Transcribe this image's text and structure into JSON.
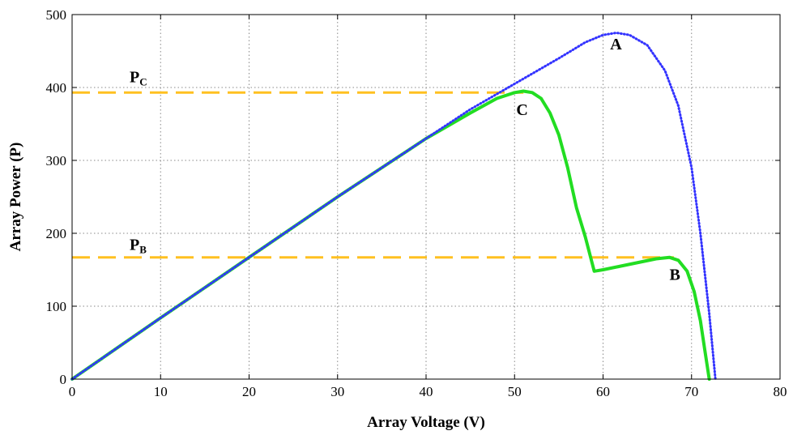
{
  "chart_data": {
    "type": "line",
    "xlabel": "Array Voltage (V)",
    "ylabel": "Array Power (P)",
    "xlim": [
      0,
      80
    ],
    "ylim": [
      0,
      500
    ],
    "xticks": [
      "0",
      "10",
      "20",
      "30",
      "40",
      "50",
      "60",
      "70",
      "80"
    ],
    "yticks": [
      "0",
      "100",
      "200",
      "300",
      "400",
      "500"
    ],
    "grid": true,
    "series": [
      {
        "style": "dotted",
        "color": "#3333ff",
        "x": [
          0,
          10,
          20,
          30,
          40,
          45,
          50,
          55,
          58,
          60,
          61.5,
          63,
          65,
          67,
          68.5,
          70,
          71,
          72,
          72.7
        ],
        "y": [
          0,
          84,
          167,
          250,
          330,
          370,
          405,
          440,
          462,
          472,
          475,
          472,
          458,
          423,
          375,
          290,
          200,
          90,
          0
        ]
      },
      {
        "style": "solid",
        "color": "#22dd22",
        "x": [
          0,
          10,
          20,
          30,
          40,
          45,
          48,
          50,
          51,
          52,
          53,
          54,
          55,
          56,
          57,
          58,
          59,
          60,
          62,
          64,
          66,
          67.5,
          68.5,
          69.5,
          70.3,
          71,
          71.5,
          72
        ],
        "y": [
          0,
          84,
          167,
          250,
          330,
          365,
          385,
          393,
          395,
          393,
          385,
          365,
          335,
          290,
          235,
          195,
          148,
          150,
          155,
          160,
          165,
          167,
          163,
          148,
          120,
          80,
          40,
          0
        ]
      },
      {
        "style": "dashed",
        "color": "#ffc020",
        "x": [
          0,
          51
        ],
        "y": [
          393,
          393
        ]
      },
      {
        "style": "dashed",
        "color": "#ffc020",
        "x": [
          0,
          68
        ],
        "y": [
          167,
          167
        ]
      }
    ],
    "annotations": [
      {
        "text": "A",
        "x": 60.8,
        "y": 452
      },
      {
        "text": "B",
        "x": 67.5,
        "y": 136
      },
      {
        "text": "C",
        "x": 50.2,
        "y": 362
      },
      {
        "text": "P",
        "sub": "C",
        "x": 6.5,
        "y": 407
      },
      {
        "text": "P",
        "sub": "B",
        "x": 6.5,
        "y": 177
      }
    ]
  }
}
